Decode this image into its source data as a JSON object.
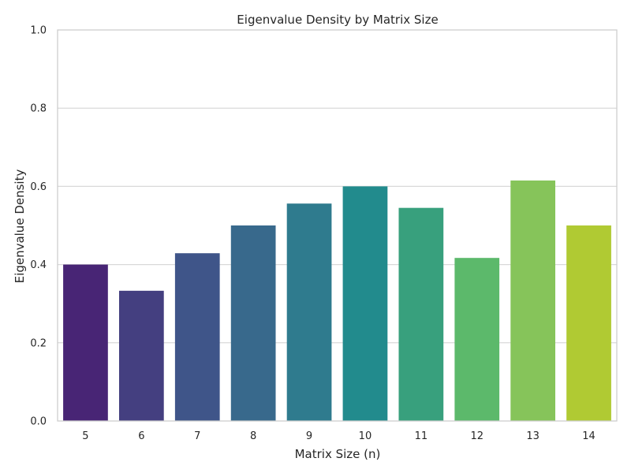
{
  "chart_data": {
    "type": "bar",
    "title": "Eigenvalue Density by Matrix Size",
    "xlabel": "Matrix Size (n)",
    "ylabel": "Eigenvalue Density",
    "categories": [
      "5",
      "6",
      "7",
      "8",
      "9",
      "10",
      "11",
      "12",
      "13",
      "14"
    ],
    "values": [
      0.4,
      0.333,
      0.429,
      0.5,
      0.556,
      0.6,
      0.545,
      0.417,
      0.615,
      0.5
    ],
    "ylim": [
      0,
      1.0
    ],
    "yticks": [
      "0.0",
      "0.2",
      "0.4",
      "0.6",
      "0.8",
      "1.0"
    ],
    "grid": "horizontal",
    "colors": [
      "#482575",
      "#443f80",
      "#3f5589",
      "#38698c",
      "#2f7b8e",
      "#228b8d",
      "#38a07d",
      "#5cb96b",
      "#86c45a",
      "#b0ca33"
    ],
    "frame_color": "#cccccc",
    "grid_color": "#d9d9d9"
  }
}
